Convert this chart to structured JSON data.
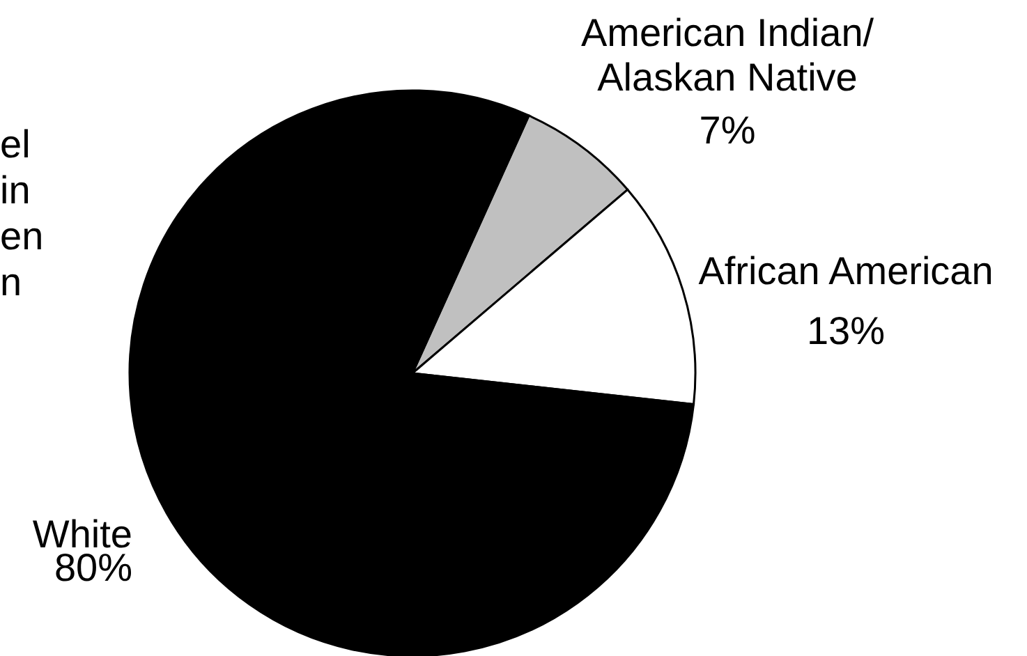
{
  "chart_data": {
    "type": "pie",
    "categories": [
      "American Indian/\nAlaskan Native",
      "African American",
      "White"
    ],
    "values": [
      7,
      13,
      80
    ],
    "colors": [
      "#c0c0c0",
      "#ffffff",
      "#000000"
    ],
    "value_labels": [
      "7%",
      "13%",
      "80%"
    ],
    "annotations": [
      "el",
      "in",
      "en",
      "n"
    ]
  }
}
